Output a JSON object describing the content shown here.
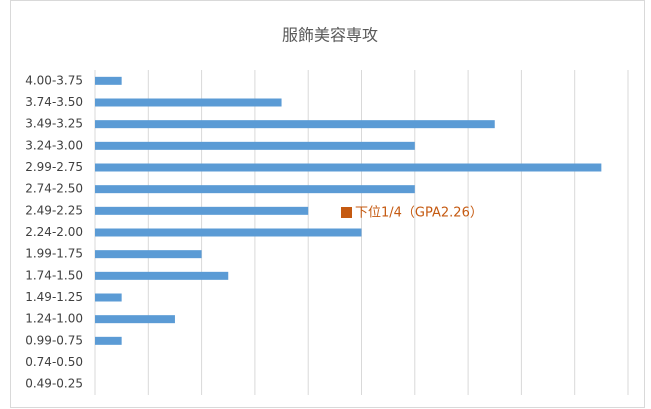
{
  "chart_data": {
    "type": "bar",
    "orientation": "horizontal",
    "title": "服飾美容専攻",
    "categories": [
      "4.00-3.75",
      "3.74-3.50",
      "3.49-3.25",
      "3.24-3.00",
      "2.99-2.75",
      "2.74-2.50",
      "2.49-2.25",
      "2.24-2.00",
      "1.99-1.75",
      "1.74-1.50",
      "1.49-1.25",
      "1.24-1.00",
      "0.99-0.75",
      "0.74-0.50",
      "0.49-0.25"
    ],
    "values": [
      1,
      7,
      15,
      12,
      19,
      12,
      8,
      10,
      4,
      5,
      1,
      3,
      1,
      0,
      0
    ],
    "color": "#5b9bd5",
    "xlim": [
      0,
      20
    ],
    "xticks": [
      0,
      2,
      4,
      6,
      8,
      10,
      12,
      14,
      16,
      18,
      20
    ],
    "grid": true,
    "annotation": {
      "text": "下位1/4（GPA2.26）",
      "color": "#c55a11"
    }
  }
}
